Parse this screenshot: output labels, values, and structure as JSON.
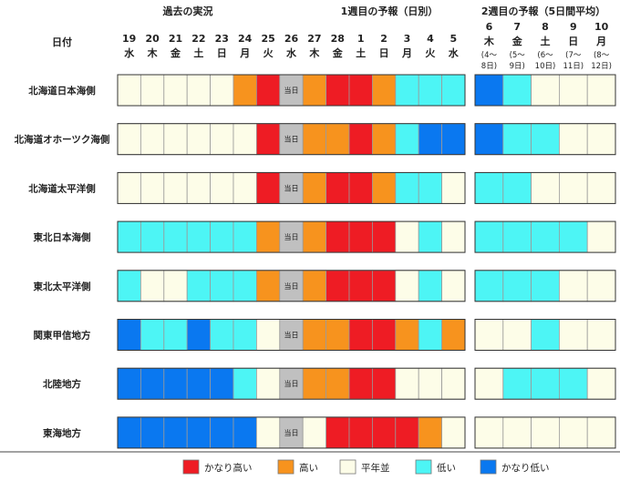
{
  "chart_data": {
    "type": "heatmap",
    "section_titles": [
      "過去の実況",
      "1週目の予報（日別）",
      "2週目の予報（5日間平均）"
    ],
    "row_header": "日付",
    "today_label": "当日",
    "daily_columns": [
      {
        "day": "19",
        "weekday": "水"
      },
      {
        "day": "20",
        "weekday": "木"
      },
      {
        "day": "21",
        "weekday": "金"
      },
      {
        "day": "22",
        "weekday": "土"
      },
      {
        "day": "23",
        "weekday": "日"
      },
      {
        "day": "24",
        "weekday": "月"
      },
      {
        "day": "25",
        "weekday": "火"
      },
      {
        "day": "26",
        "weekday": "水"
      },
      {
        "day": "27",
        "weekday": "木"
      },
      {
        "day": "28",
        "weekday": "金"
      },
      {
        "day": "1",
        "weekday": "土"
      },
      {
        "day": "2",
        "weekday": "日"
      },
      {
        "day": "3",
        "weekday": "月"
      },
      {
        "day": "4",
        "weekday": "火"
      },
      {
        "day": "5",
        "weekday": "水"
      }
    ],
    "weekly_columns": [
      {
        "day": "6",
        "weekday": "木",
        "range_a": "(4～",
        "range_b": "8日)"
      },
      {
        "day": "7",
        "weekday": "金",
        "range_a": "(5～",
        "range_b": "9日)"
      },
      {
        "day": "8",
        "weekday": "土",
        "range_a": "(6～",
        "range_b": "10日)"
      },
      {
        "day": "9",
        "weekday": "日",
        "range_a": "(7～",
        "range_b": "11日)"
      },
      {
        "day": "10",
        "weekday": "月",
        "range_a": "(8～",
        "range_b": "12日)"
      }
    ],
    "categories": [
      {
        "code": 2,
        "label": "かなり高い",
        "color": "#ee1c24"
      },
      {
        "code": 1,
        "label": "高い",
        "color": "#f7931e"
      },
      {
        "code": 0,
        "label": "平年並",
        "color": "#fdfde8"
      },
      {
        "code": -1,
        "label": "低い",
        "color": "#4df5f5"
      },
      {
        "code": -2,
        "label": "かなり低い",
        "color": "#0a78f0"
      }
    ],
    "today_color": "#c0c0c0",
    "regions": [
      {
        "name": "北海道日本海側",
        "daily": [
          0,
          0,
          0,
          0,
          0,
          1,
          2,
          null,
          1,
          2,
          2,
          1,
          -1,
          -1,
          -1
        ],
        "weekly": [
          -2,
          -1,
          0,
          0,
          0
        ]
      },
      {
        "name": "北海道オホーツク海側",
        "daily": [
          0,
          0,
          0,
          0,
          0,
          0,
          2,
          null,
          1,
          1,
          2,
          1,
          -1,
          -2,
          -2
        ],
        "weekly": [
          -2,
          -1,
          -1,
          0,
          0
        ]
      },
      {
        "name": "北海道太平洋側",
        "daily": [
          0,
          0,
          0,
          0,
          0,
          0,
          2,
          null,
          1,
          2,
          2,
          1,
          -1,
          -1,
          0
        ],
        "weekly": [
          -1,
          -1,
          0,
          0,
          0
        ]
      },
      {
        "name": "東北日本海側",
        "daily": [
          -1,
          -1,
          -1,
          -1,
          -1,
          -1,
          1,
          null,
          1,
          2,
          2,
          2,
          0,
          -1,
          0
        ],
        "weekly": [
          -1,
          -1,
          -1,
          -1,
          0
        ]
      },
      {
        "name": "東北太平洋側",
        "daily": [
          -1,
          0,
          0,
          -1,
          -1,
          -1,
          1,
          null,
          1,
          2,
          2,
          2,
          0,
          -1,
          0
        ],
        "weekly": [
          -1,
          -1,
          -1,
          0,
          0
        ]
      },
      {
        "name": "関東甲信地方",
        "daily": [
          -2,
          -1,
          -1,
          -2,
          -1,
          -1,
          0,
          null,
          1,
          1,
          2,
          2,
          1,
          -1,
          1
        ],
        "weekly": [
          0,
          0,
          -1,
          0,
          0
        ]
      },
      {
        "name": "北陸地方",
        "daily": [
          -2,
          -2,
          -2,
          -2,
          -2,
          -1,
          0,
          null,
          1,
          1,
          2,
          2,
          0,
          0,
          0
        ],
        "weekly": [
          0,
          -1,
          -1,
          -1,
          0
        ]
      },
      {
        "name": "東海地方",
        "daily": [
          -2,
          -2,
          -2,
          -2,
          -2,
          -2,
          0,
          null,
          0,
          2,
          2,
          2,
          2,
          1,
          0
        ],
        "weekly": [
          0,
          0,
          0,
          0,
          0
        ]
      }
    ]
  }
}
